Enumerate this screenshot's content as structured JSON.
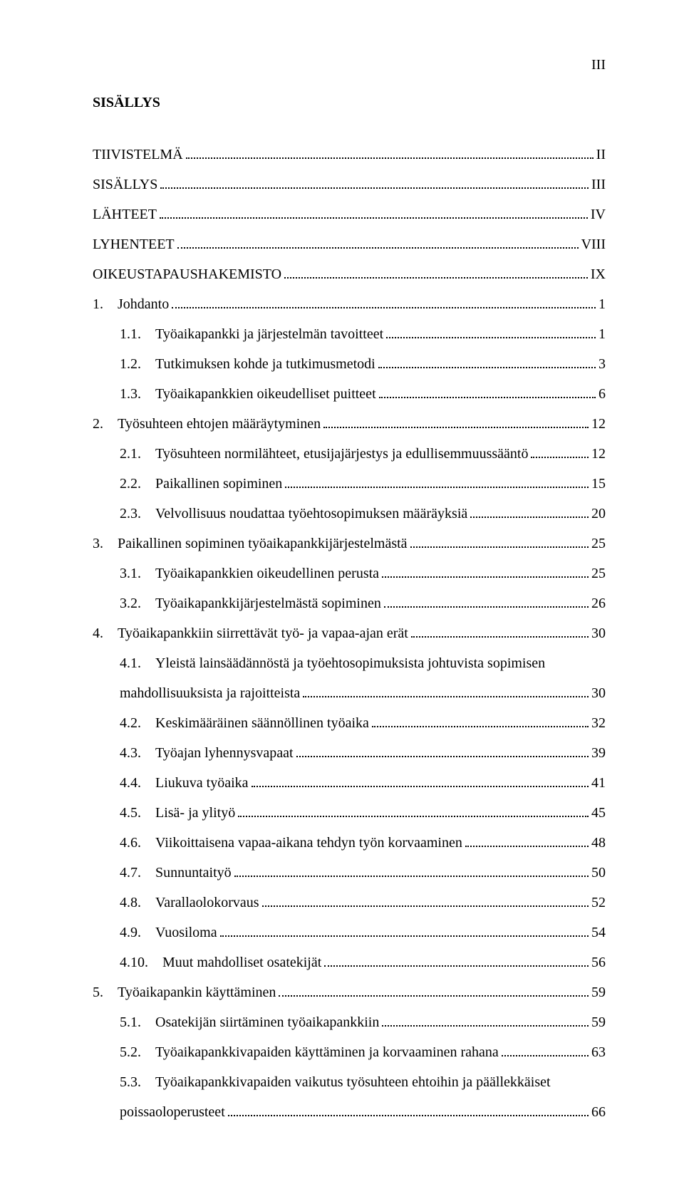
{
  "page_number_roman": "III",
  "heading": "SISÄLLYS",
  "entries": [
    {
      "indent": 0,
      "text": "TIIVISTELMÄ",
      "page": "II"
    },
    {
      "indent": 0,
      "text": "SISÄLLYS",
      "page": "III"
    },
    {
      "indent": 0,
      "text": "LÄHTEET",
      "page": "IV"
    },
    {
      "indent": 0,
      "text": "LYHENTEET",
      "page": "VIII"
    },
    {
      "indent": 0,
      "text": "OIKEUSTAPAUSHAKEMISTO",
      "page": "IX"
    },
    {
      "indent": 0,
      "text": "1. Johdanto",
      "page": "1"
    },
    {
      "indent": 1,
      "text": "1.1. Työaikapankki ja järjestelmän tavoitteet",
      "page": "1"
    },
    {
      "indent": 1,
      "text": "1.2. Tutkimuksen kohde ja tutkimusmetodi",
      "page": "3"
    },
    {
      "indent": 1,
      "text": "1.3. Työaikapankkien oikeudelliset puitteet",
      "page": "6"
    },
    {
      "indent": 0,
      "text": "2. Työsuhteen ehtojen määräytyminen",
      "page": "12"
    },
    {
      "indent": 1,
      "text": "2.1. Työsuhteen normilähteet, etusijajärjestys ja edullisemmuussääntö",
      "page": "12"
    },
    {
      "indent": 1,
      "text": "2.2. Paikallinen sopiminen",
      "page": "15"
    },
    {
      "indent": 1,
      "text": "2.3. Velvollisuus noudattaa työehtosopimuksen määräyksiä",
      "page": "20"
    },
    {
      "indent": 0,
      "text": "3. Paikallinen sopiminen työaikapankkijärjestelmästä",
      "page": "25"
    },
    {
      "indent": 1,
      "text": "3.1. Työaikapankkien oikeudellinen perusta",
      "page": "25"
    },
    {
      "indent": 1,
      "text": "3.2. Työaikapankkijärjestelmästä sopiminen",
      "page": "26"
    },
    {
      "indent": 0,
      "text": "4. Työaikapankkiin siirrettävät työ- ja vapaa-ajan erät",
      "page": "30"
    },
    {
      "indent": 1,
      "text": "4.1. Yleistä lainsäädännöstä ja työehtosopimuksista johtuvista sopimisen",
      "wrap": true,
      "wrap_text": "mahdollisuuksista ja rajoitteista",
      "page": "30"
    },
    {
      "indent": 1,
      "text": "4.2. Keskimääräinen säännöllinen työaika",
      "page": "32"
    },
    {
      "indent": 1,
      "text": "4.3. Työajan lyhennysvapaat",
      "page": "39"
    },
    {
      "indent": 1,
      "text": "4.4. Liukuva työaika",
      "page": "41"
    },
    {
      "indent": 1,
      "text": "4.5. Lisä- ja ylityö",
      "page": "45"
    },
    {
      "indent": 1,
      "text": "4.6. Viikoittaisena vapaa-aikana tehdyn työn korvaaminen",
      "page": "48"
    },
    {
      "indent": 1,
      "text": "4.7. Sunnuntaityö",
      "page": "50"
    },
    {
      "indent": 1,
      "text": "4.8. Varallaolokorvaus",
      "page": "52"
    },
    {
      "indent": 1,
      "text": "4.9. Vuosiloma",
      "page": "54"
    },
    {
      "indent": 1,
      "text": "4.10. Muut mahdolliset osatekijät",
      "page": "56"
    },
    {
      "indent": 0,
      "text": "5. Työaikapankin käyttäminen",
      "page": "59"
    },
    {
      "indent": 1,
      "text": "5.1. Osatekijän siirtäminen työaikapankkiin",
      "page": "59"
    },
    {
      "indent": 1,
      "text": "5.2. Työaikapankkivapaiden käyttäminen ja korvaaminen rahana",
      "page": "63"
    },
    {
      "indent": 1,
      "text": "5.3. Työaikapankkivapaiden vaikutus työsuhteen ehtoihin ja päällekkäiset",
      "wrap": true,
      "wrap_text": "poissaoloperusteet",
      "page": "66"
    }
  ],
  "style": {
    "font_family": "Times New Roman",
    "font_size_pt": 15,
    "line_height": 2.1,
    "text_color": "#000000",
    "background_color": "#ffffff",
    "leader_style": "dotted"
  }
}
